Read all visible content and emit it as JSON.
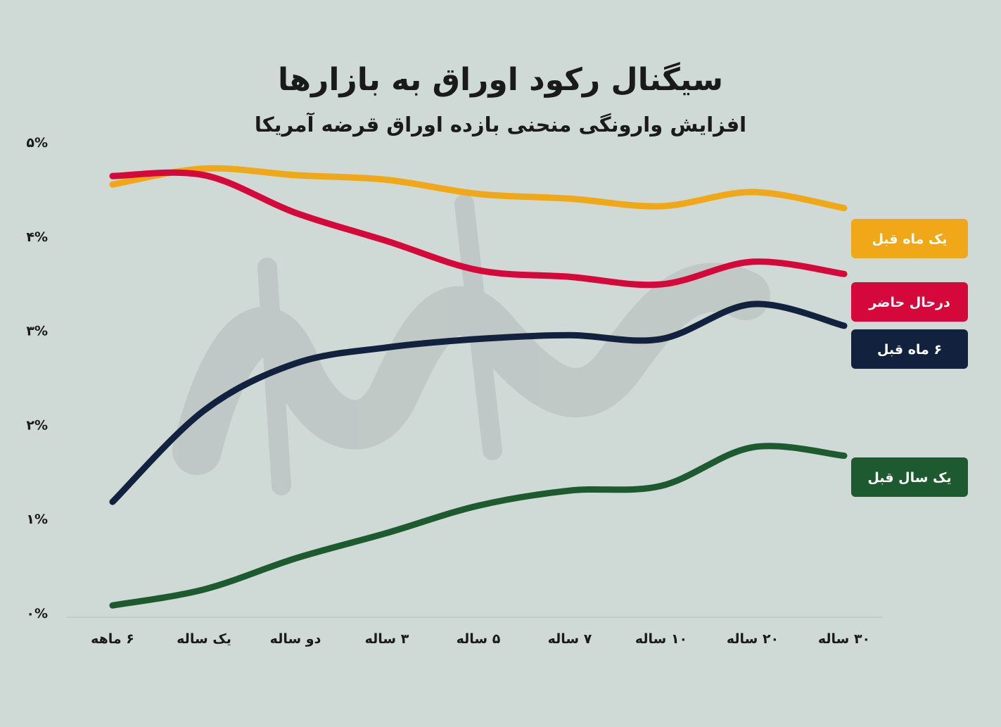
{
  "chart_data": {
    "type": "line",
    "title": "سیگنال رکود اوراق به بازارها",
    "subtitle": "افزایش وارونگی منحنی بازده اوراق قرضه آمریکا",
    "categories": [
      "۶ ماهه",
      "یک ساله",
      "دو ساله",
      "۳ ساله",
      "۵ ساله",
      "۷ ساله",
      "۱۰ ساله",
      "۲۰ ساله",
      "۳۰ ساله"
    ],
    "ylim": [
      0,
      5
    ],
    "yticks": [
      0,
      1,
      2,
      3,
      4,
      5
    ],
    "ytick_labels": [
      "۰%",
      "۱%",
      "۲%",
      "۳%",
      "۴%",
      "۵%"
    ],
    "grid": false,
    "legend_position": "right",
    "series": [
      {
        "name": "یک ماه قبل",
        "color": "#f0a818",
        "values": [
          4.55,
          4.72,
          4.65,
          4.6,
          4.45,
          4.4,
          4.32,
          4.47,
          4.3
        ]
      },
      {
        "name": "درحال حاضر",
        "color": "#d4083a",
        "values": [
          4.64,
          4.65,
          4.25,
          3.95,
          3.64,
          3.57,
          3.49,
          3.73,
          3.6
        ]
      },
      {
        "name": "۶ ماه قبل",
        "color": "#12213e",
        "values": [
          1.18,
          2.15,
          2.65,
          2.82,
          2.91,
          2.95,
          2.91,
          3.28,
          3.05
        ]
      },
      {
        "name": "یک سال قبل",
        "color": "#1e5a30",
        "values": [
          0.08,
          0.25,
          0.58,
          0.85,
          1.14,
          1.3,
          1.35,
          1.76,
          1.67
        ]
      }
    ]
  }
}
